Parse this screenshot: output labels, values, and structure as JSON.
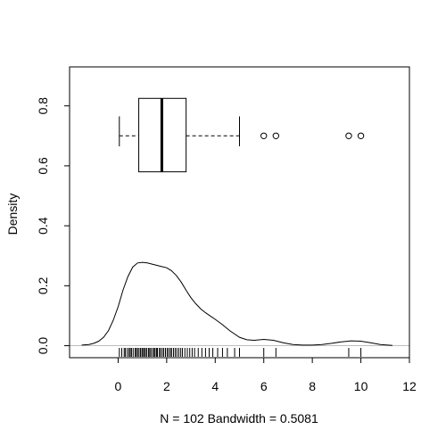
{
  "chart_data": {
    "type": "line",
    "title": "",
    "xlabel": "N = 102   Bandwidth = 0.5081",
    "ylabel": "Density",
    "xlim": [
      -2,
      12
    ],
    "ylim": [
      -0.04,
      0.93
    ],
    "x_ticks": [
      "0",
      "2",
      "4",
      "6",
      "8",
      "10",
      "12"
    ],
    "y_ticks": [
      "0.0",
      "0.2",
      "0.4",
      "0.6",
      "0.8"
    ],
    "density_curve": {
      "x": [
        -1.5,
        -1.2,
        -1.0,
        -0.8,
        -0.6,
        -0.4,
        -0.2,
        0.0,
        0.2,
        0.4,
        0.6,
        0.8,
        1.0,
        1.2,
        1.4,
        1.6,
        1.8,
        2.0,
        2.2,
        2.4,
        2.6,
        2.8,
        3.0,
        3.2,
        3.4,
        3.6,
        3.8,
        4.0,
        4.3,
        4.6,
        5.0,
        5.3,
        5.6,
        6.0,
        6.4,
        6.8,
        7.2,
        7.6,
        8.0,
        8.4,
        8.8,
        9.2,
        9.6,
        10.0,
        10.4,
        10.8,
        11.3
      ],
      "y": [
        0.002,
        0.004,
        0.008,
        0.015,
        0.028,
        0.05,
        0.085,
        0.13,
        0.185,
        0.23,
        0.262,
        0.276,
        0.278,
        0.276,
        0.272,
        0.268,
        0.264,
        0.26,
        0.25,
        0.234,
        0.212,
        0.185,
        0.16,
        0.14,
        0.123,
        0.11,
        0.099,
        0.088,
        0.07,
        0.05,
        0.028,
        0.02,
        0.018,
        0.021,
        0.018,
        0.01,
        0.004,
        0.002,
        0.002,
        0.004,
        0.008,
        0.013,
        0.016,
        0.015,
        0.01,
        0.004,
        0.001
      ]
    },
    "rug": [
      0.05,
      0.15,
      0.25,
      0.3,
      0.38,
      0.45,
      0.5,
      0.55,
      0.62,
      0.7,
      0.75,
      0.8,
      0.86,
      0.92,
      0.98,
      1.02,
      1.08,
      1.12,
      1.18,
      1.25,
      1.3,
      1.35,
      1.42,
      1.48,
      1.52,
      1.58,
      1.62,
      1.7,
      1.75,
      1.82,
      1.88,
      1.95,
      2.02,
      2.08,
      2.15,
      2.2,
      2.28,
      2.35,
      2.42,
      2.5,
      2.58,
      2.65,
      2.75,
      2.85,
      2.95,
      3.05,
      3.15,
      3.3,
      3.45,
      3.6,
      3.75,
      3.9,
      4.1,
      4.3,
      4.5,
      4.8,
      5.0,
      6.0,
      6.5,
      9.5,
      10.0
    ],
    "boxplot": {
      "y_level": 0.7,
      "whisker_low": 0.05,
      "q1": 0.85,
      "median": 1.8,
      "q3": 2.8,
      "whisker_high": 5.0,
      "box_y_bottom": 0.58,
      "box_y_top": 0.825,
      "whisker_cap_low": 0.665,
      "whisker_cap_high": 0.765,
      "outliers": [
        6.0,
        6.5,
        9.5,
        10.0
      ]
    },
    "baseline_y": 0,
    "colors": {
      "line": "#000000",
      "baseline": "#bdbdbd",
      "background": "#ffffff"
    }
  }
}
